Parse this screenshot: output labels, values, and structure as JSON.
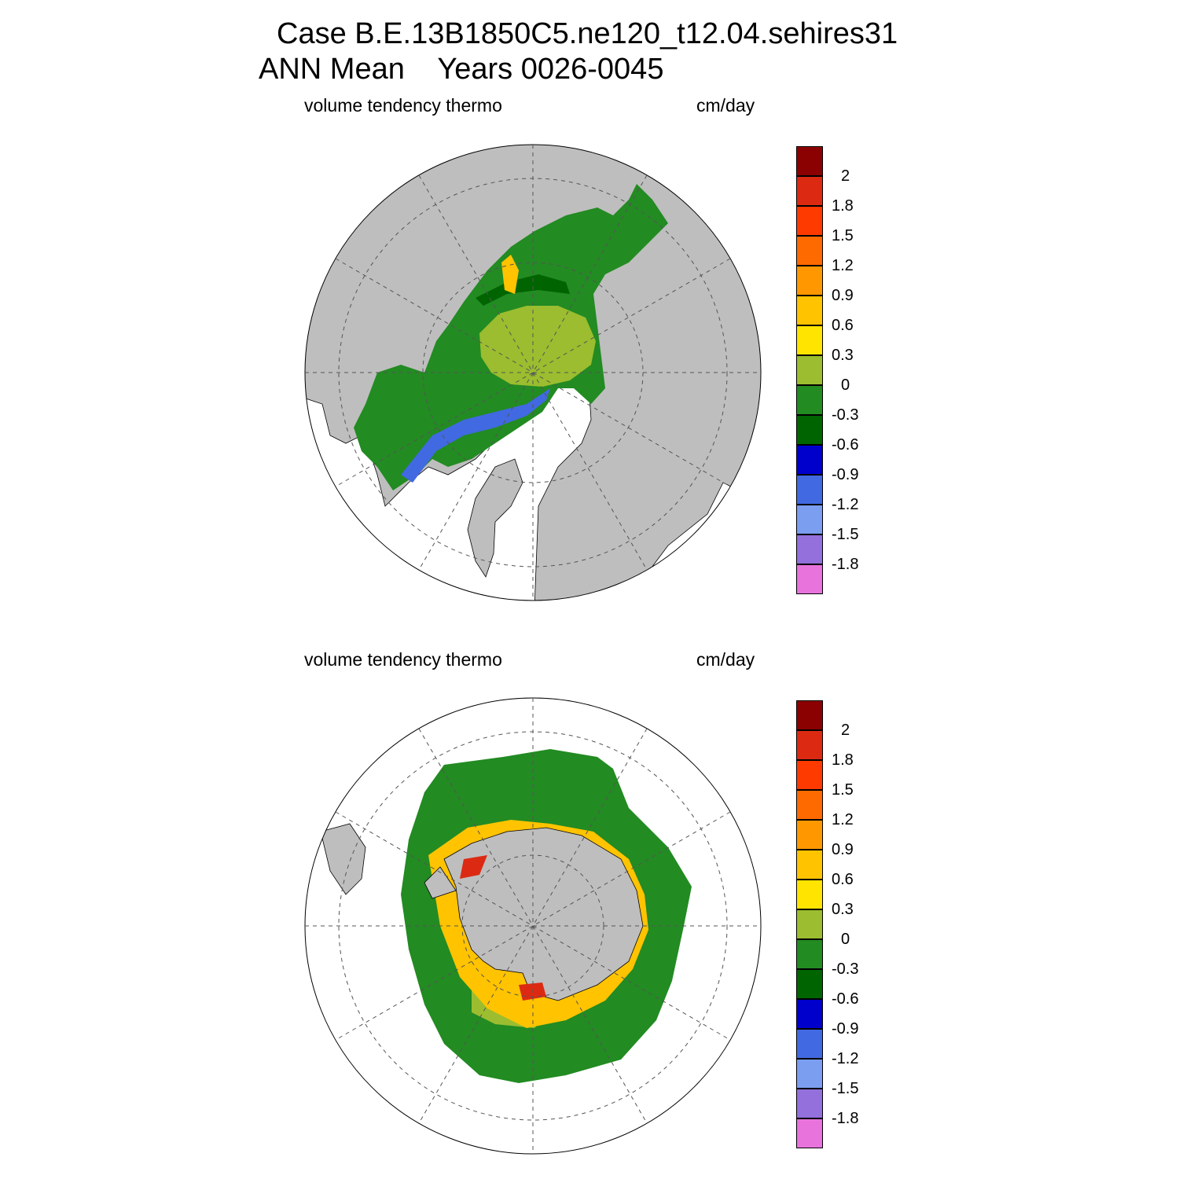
{
  "header": {
    "line1": "Case B.E.13B1850C5.ne120_t12.04.sehires31",
    "line2": "ANN Mean    Years 0026-0045"
  },
  "panels": [
    {
      "id": "north",
      "left_label": "volume tendency thermo",
      "right_label": "cm/day"
    },
    {
      "id": "south",
      "left_label": "volume tendency thermo",
      "right_label": "cm/day"
    }
  ],
  "colorbar": {
    "labels": [
      "2",
      "1.8",
      "1.5",
      "1.2",
      "0.9",
      "0.6",
      "0.3",
      "0",
      "-0.3",
      "-0.6",
      "-0.9",
      "-1.2",
      "-1.5",
      "-1.8"
    ],
    "colors": [
      "#8b0000",
      "#dc2a12",
      "#ff3a00",
      "#ff6a00",
      "#ff9800",
      "#ffc300",
      "#ffe400",
      "#9bbd2f",
      "#228b22",
      "#006400",
      "#0000cd",
      "#4169e1",
      "#7b9ef0",
      "#9370db",
      "#e873dc"
    ]
  },
  "map_colors": {
    "land": "#bebebe",
    "ocean": "#ffffff",
    "neutral_ice": "#9bbd2f",
    "melt_ice": "#228b22",
    "dark_melt": "#006400",
    "growth_edge": "#ffc300",
    "strong_growth": "#dc2a12",
    "blue_strip": "#4169e1"
  }
}
